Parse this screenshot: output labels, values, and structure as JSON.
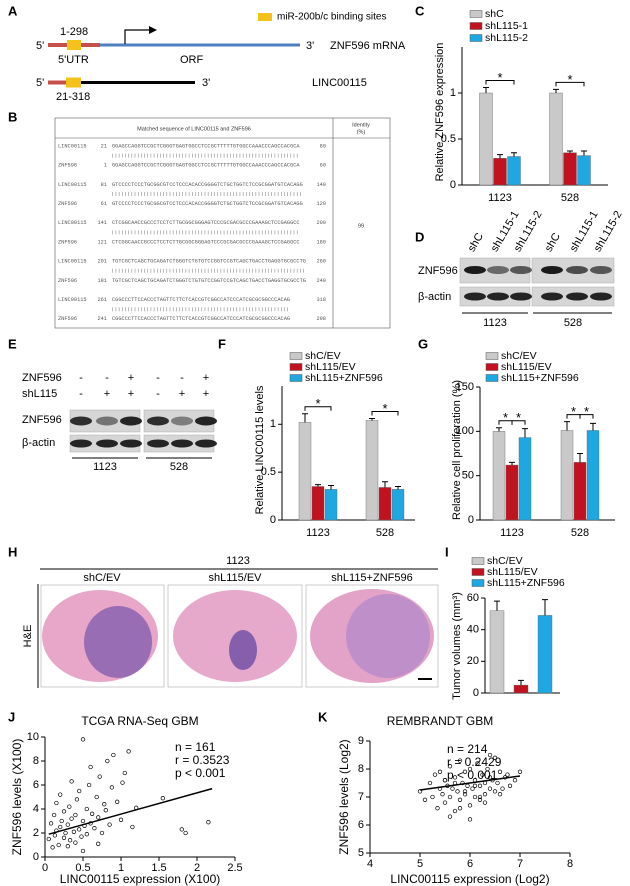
{
  "panel_labels": [
    "A",
    "B",
    "C",
    "D",
    "E",
    "F",
    "G",
    "H",
    "I",
    "J",
    "K"
  ],
  "panel_a": {
    "legend": "miR-200b/c binding sites",
    "mrna": {
      "five": "5'",
      "range": "1-298",
      "utr": "5'UTR",
      "orf": "ORF",
      "three": "3'",
      "name": "ZNF596 mRNA"
    },
    "lnc": {
      "five": "5'",
      "range": "21-318",
      "three": "3'",
      "name": "LINC00115"
    }
  },
  "panel_b": {
    "header": "Matched sequence of LINC00115 and ZNF596",
    "identity_header": [
      "Identity",
      "(%)"
    ],
    "identity": "99",
    "rows": [
      [
        "LINC00115",
        "21",
        "GGAGCCAGGTCCGCTCGGGTGAGTGGCCTCCGCTTTTTGTGGCCAAACCCAGCCACGCA",
        "80"
      ],
      [
        "ZNF596",
        "1",
        "GGAGCCAGGTCCGCTCGGGTGAGTGGCCTCCGCTTTTTGTGGCCAAACCCAGCCACGCA",
        "60"
      ],
      [
        "LINC00115",
        "81",
        "GTCCCCTCCCTGCGGCGTCCTCCCACACCGGGGTCTGCTGGTCTCCGCGGATGTCACAGG",
        "140"
      ],
      [
        "ZNF596",
        "61",
        "GTCCCCTCCCTGCGGCGTCCTCCCACACCGGGGTCTGCTGGTCTCCGCGGATGTCACAGG",
        "120"
      ],
      [
        "LINC00115",
        "141",
        "CTCGGCAACCGCCCTCCTCTTGCGGCGGGAGTCCCGCGACGCCCGAAAGCTCCGAGGCC",
        "200"
      ],
      [
        "ZNF596",
        "121",
        "CTCGGCAACCGCCCTCCTCTTGCGGCGGGAGTCCCGCGACGCCCGAAAGCTCCGAGGCC",
        "180"
      ],
      [
        "LINC00115",
        "201",
        "TGTCGCTCAGCTGCAGATCTGGGTCTGTGTCCGGTCCGTCAGCTGACCTGAGGTGCGCCTG",
        "260"
      ],
      [
        "ZNF596",
        "181",
        "TGTCGCTCAGCTGCAGATCTGGGTCTGTGTCCGGTCCGTCAGCTGACCTGAGGTGCGCCTG",
        "240"
      ],
      [
        "LINC00115",
        "261",
        "CGGCCCTTCCACCCTAGTTCTTCTCACCGTCGGCCATCCCATCGCGCGGCCCACAG",
        "318"
      ],
      [
        "ZNF596",
        "241",
        "CGGCCCTTCCACCCTAGTTCTTCTCACCGTCGGCCATCCCATCGCGCGGCCCACAG",
        "298"
      ]
    ]
  },
  "panel_d": {
    "lanes": [
      "shC",
      "shL115-1",
      "shL115-2",
      "shC",
      "shL115-1",
      "shL115-2"
    ],
    "blots": [
      "ZNF596",
      "β-actin"
    ],
    "groups": [
      "1123",
      "528"
    ]
  },
  "panel_e": {
    "rows": [
      {
        "label": "ZNF596",
        "signs": [
          "-",
          "-",
          "+",
          "-",
          "-",
          "+"
        ]
      },
      {
        "label": "shL115",
        "signs": [
          "-",
          "+",
          "+",
          "-",
          "+",
          "+"
        ]
      }
    ],
    "blots": [
      "ZNF596",
      "β-actin"
    ],
    "groups": [
      "1123",
      "528"
    ]
  },
  "panel_h": {
    "group": "1123",
    "stain": "H&E",
    "conditions": [
      "shC/EV",
      "shL115/EV",
      "shL115+ZNF596"
    ]
  },
  "chart_data": [
    {
      "type": "bar",
      "ylabel": "Relative ZNF596 expression",
      "categories": [
        "1123",
        "528"
      ],
      "series": [
        {
          "name": "shC",
          "color": "#c9c9c9",
          "values": [
            1.0,
            1.0
          ],
          "error": [
            0.06,
            0.04
          ]
        },
        {
          "name": "shL115-1",
          "color": "#c1121f",
          "values": [
            0.29,
            0.35
          ],
          "error": [
            0.04,
            0.02
          ]
        },
        {
          "name": "shL115-2",
          "color": "#1ea7e1",
          "values": [
            0.31,
            0.32
          ],
          "error": [
            0.04,
            0.05
          ]
        }
      ],
      "ylim": [
        0,
        1.5
      ],
      "yticks": [
        0,
        0.5,
        1
      ],
      "annotations": [
        "*",
        "*"
      ]
    },
    {
      "type": "bar",
      "ylabel": "Relative LINC00115 levels",
      "categories": [
        "1123",
        "528"
      ],
      "series": [
        {
          "name": "shC/EV",
          "color": "#c9c9c9",
          "values": [
            1.02,
            1.04
          ],
          "error": [
            0.09,
            0.02
          ]
        },
        {
          "name": "shL115/EV",
          "color": "#c1121f",
          "values": [
            0.35,
            0.34
          ],
          "error": [
            0.02,
            0.06
          ]
        },
        {
          "name": "shL115+ZNF596",
          "color": "#1ea7e1",
          "values": [
            0.32,
            0.32
          ],
          "error": [
            0.04,
            0.03
          ]
        }
      ],
      "ylim": [
        0,
        1.4
      ],
      "yticks": [
        0,
        0.5,
        1
      ],
      "annotations": [
        "*",
        "*"
      ]
    },
    {
      "type": "bar",
      "ylabel": "Relative cell proliferation (%)",
      "categories": [
        "1123",
        "528"
      ],
      "series": [
        {
          "name": "shC/EV",
          "color": "#c9c9c9",
          "values": [
            100,
            101
          ],
          "error": [
            4,
            10
          ]
        },
        {
          "name": "shL115/EV",
          "color": "#c1121f",
          "values": [
            62,
            65
          ],
          "error": [
            3,
            10
          ]
        },
        {
          "name": "shL115+ZNF596",
          "color": "#1ea7e1",
          "values": [
            93,
            101
          ],
          "error": [
            10,
            8
          ]
        }
      ],
      "ylim": [
        0,
        150
      ],
      "yticks": [
        0,
        50,
        100,
        150
      ],
      "annotations": [
        "*",
        "*",
        "*",
        "*"
      ]
    },
    {
      "type": "bar",
      "ylabel": "Tumor volumes (mm³)",
      "categories": [
        null
      ],
      "series": [
        {
          "name": "shC/EV",
          "color": "#c9c9c9",
          "values": [
            52
          ],
          "error": [
            6
          ]
        },
        {
          "name": "shL115/EV",
          "color": "#c1121f",
          "values": [
            5
          ],
          "error": [
            3
          ]
        },
        {
          "name": "shL115+ZNF596",
          "color": "#1ea7e1",
          "values": [
            49
          ],
          "error": [
            10
          ]
        }
      ],
      "ylim": [
        0,
        60
      ],
      "yticks": [
        0,
        20,
        40,
        60
      ]
    },
    {
      "type": "scatter",
      "title": "TCGA RNA-Seq GBM",
      "xlabel": "LINC00115 expression (X100)",
      "ylabel": "ZNF596 levels (X100)",
      "stats": [
        "n = 161",
        "r = 0.3523",
        "p < 0.001"
      ],
      "x": [
        0.05,
        0.08,
        0.1,
        0.12,
        0.13,
        0.15,
        0.15,
        0.18,
        0.2,
        0.2,
        0.22,
        0.25,
        0.25,
        0.27,
        0.3,
        0.3,
        0.32,
        0.33,
        0.35,
        0.35,
        0.38,
        0.4,
        0.4,
        0.42,
        0.45,
        0.45,
        0.48,
        0.5,
        0.5,
        0.52,
        0.55,
        0.55,
        0.58,
        0.6,
        0.6,
        0.62,
        0.65,
        0.68,
        0.7,
        0.72,
        0.75,
        0.78,
        0.8,
        0.82,
        0.85,
        0.88,
        0.9,
        0.95,
        1.0,
        1.02,
        1.05,
        1.1,
        1.15,
        1.2,
        1.55,
        1.8,
        1.85,
        2.15,
        0.5,
        0.7
      ],
      "y": [
        1.5,
        2.8,
        0.8,
        3.5,
        1.8,
        2.2,
        4.5,
        1.0,
        2.5,
        5.2,
        3.0,
        1.6,
        3.8,
        2.0,
        0.9,
        2.7,
        4.2,
        1.4,
        3.2,
        6.3,
        2.1,
        1.2,
        3.5,
        4.8,
        2.3,
        5.5,
        1.7,
        3.0,
        9.8,
        2.6,
        1.9,
        4.0,
        6.0,
        2.8,
        7.5,
        3.6,
        2.4,
        5.0,
        3.3,
        6.7,
        2.0,
        4.4,
        3.9,
        8.0,
        2.7,
        5.8,
        8.5,
        4.6,
        3.1,
        6.2,
        7.0,
        8.8,
        2.5,
        4.1,
        4.9,
        2.3,
        2.0,
        2.9,
        0.5,
        1.1
      ],
      "fit_x": [
        0.05,
        2.2
      ],
      "fit_y": [
        1.9,
        5.7
      ],
      "xlim": [
        0,
        2.5
      ],
      "xticks": [
        0,
        0.5,
        1,
        1.5,
        2,
        2.5
      ],
      "ylim": [
        0,
        10
      ],
      "yticks": [
        0,
        2,
        4,
        6,
        8,
        10
      ]
    },
    {
      "type": "scatter",
      "title": "REMBRANDT GBM",
      "xlabel": "LINC00115 expression (Log2)",
      "ylabel": "ZNF596 levels (Log2)",
      "stats": [
        "n = 214",
        "r = 0.2429",
        "p < 0.001"
      ],
      "x": [
        5.0,
        5.1,
        5.2,
        5.25,
        5.3,
        5.35,
        5.4,
        5.4,
        5.45,
        5.5,
        5.5,
        5.55,
        5.6,
        5.6,
        5.65,
        5.7,
        5.7,
        5.75,
        5.8,
        5.8,
        5.85,
        5.9,
        5.9,
        5.95,
        6.0,
        6.0,
        6.05,
        6.1,
        6.1,
        6.15,
        6.2,
        6.2,
        6.25,
        6.3,
        6.3,
        6.35,
        6.4,
        6.4,
        6.45,
        6.5,
        6.5,
        6.55,
        6.6,
        6.65,
        6.7,
        6.75,
        6.8,
        6.9,
        7.0,
        5.6,
        5.8,
        6.0,
        6.2,
        5.7,
        5.9,
        6.1,
        6.3,
        5.5,
        6.4,
        6.6
      ],
      "y": [
        7.2,
        6.9,
        7.5,
        7.0,
        7.8,
        6.6,
        7.3,
        7.9,
        7.1,
        6.8,
        7.6,
        7.4,
        7.0,
        8.1,
        7.3,
        6.5,
        7.7,
        7.2,
        6.9,
        8.3,
        7.5,
        7.1,
        7.9,
        7.4,
        6.7,
        8.0,
        7.3,
        7.6,
        7.0,
        8.2,
        7.4,
        6.9,
        7.8,
        7.5,
        7.1,
        8.0,
        7.3,
        7.7,
        7.6,
        7.2,
        8.4,
        7.5,
        7.9,
        7.3,
        7.7,
        7.8,
        7.4,
        7.6,
        7.9,
        6.3,
        6.6,
        6.2,
        7.0,
        7.5,
        7.2,
        7.4,
        6.8,
        7.6,
        8.5,
        7.1
      ],
      "fit_x": [
        5.0,
        7.0
      ],
      "fit_y": [
        7.25,
        7.75
      ],
      "xlim": [
        4,
        8
      ],
      "xticks": [
        4,
        5,
        6,
        7,
        8
      ],
      "ylim": [
        5,
        9
      ],
      "yticks": [
        5,
        6,
        7,
        8,
        9
      ]
    }
  ]
}
